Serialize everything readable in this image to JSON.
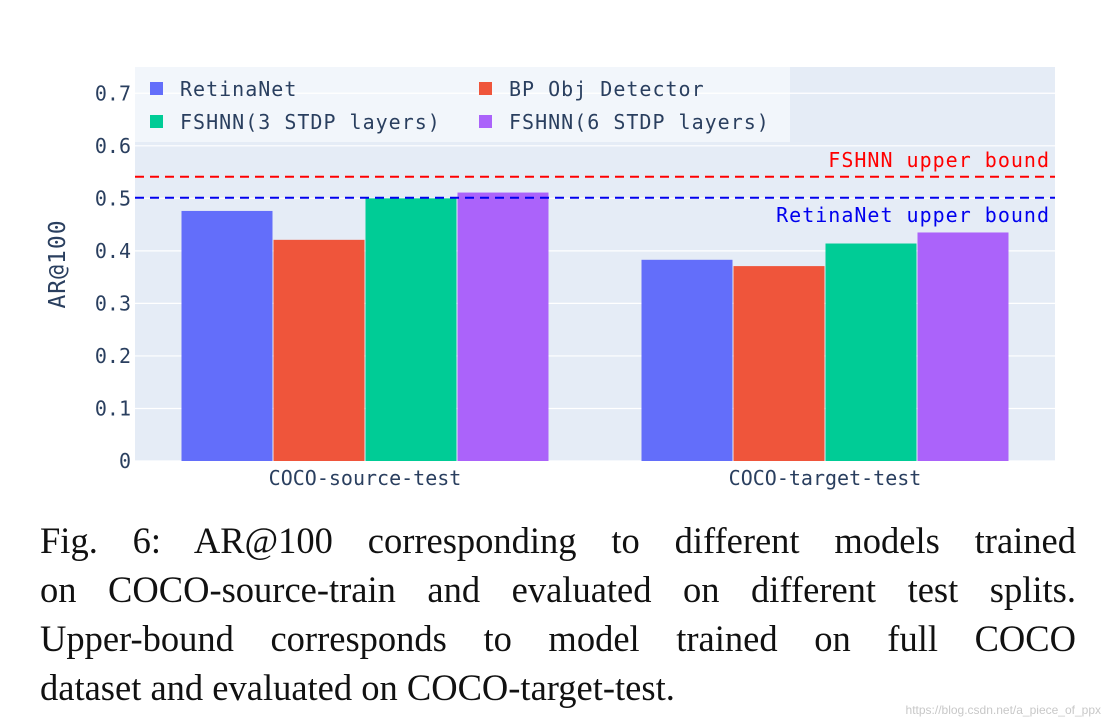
{
  "chart_data": {
    "type": "bar",
    "title": "",
    "xlabel": "",
    "ylabel": "AR@100",
    "ylim": [
      0,
      0.75
    ],
    "yticks": [
      0,
      0.1,
      0.2,
      0.3,
      0.4,
      0.5,
      0.6,
      0.7
    ],
    "ytick_labels": [
      "0",
      "0.1",
      "0.2",
      "0.3",
      "0.4",
      "0.5",
      "0.6",
      "0.7"
    ],
    "categories": [
      "COCO-source-test",
      "COCO-target-test"
    ],
    "series": [
      {
        "name": "RetinaNet",
        "color": "#636efa",
        "values": [
          0.476,
          0.383
        ]
      },
      {
        "name": "BP Obj Detector",
        "color": "#ef553b",
        "values": [
          0.421,
          0.371
        ]
      },
      {
        "name": "FSHNN(3 STDP layers)",
        "color": "#00cc96",
        "values": [
          0.5,
          0.414
        ]
      },
      {
        "name": "FSHNN(6 STDP layers)",
        "color": "#ab63fa",
        "values": [
          0.511,
          0.435
        ]
      }
    ],
    "reference_lines": [
      {
        "label": "FSHNN upper bound",
        "value": 0.541,
        "color": "#ff0000"
      },
      {
        "label": "RetinaNet upper bound",
        "value": 0.501,
        "color": "#0000ee"
      }
    ],
    "legend_position": "top-left",
    "grid": true,
    "plot_background": "#e5ecf6"
  },
  "caption": {
    "lines": [
      "Fig. 6: AR@100 corresponding to different models trained",
      "on COCO-source-train and evaluated on different test splits.",
      "Upper-bound corresponds to model trained on full COCO",
      "dataset and evaluated on COCO-target-test."
    ]
  },
  "watermark": "https://blog.csdn.net/a_piece_of_ppx"
}
